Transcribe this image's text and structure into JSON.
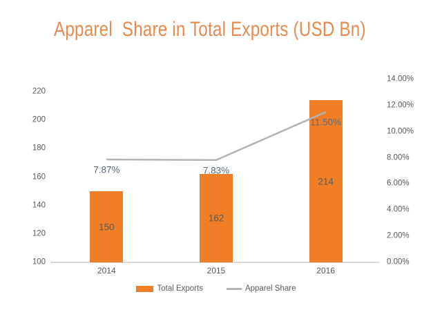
{
  "title": "Apparel  Share in Total Exports (USD Bn)",
  "colors": {
    "background": "#FFFFFF",
    "title": "#E78A50",
    "bar": "#F07E26",
    "line": "#B3B3B3",
    "axis_text": "#595959",
    "value_label": "#595959",
    "pct_label": "#5A6B7C",
    "baseline": "#D9D9D9"
  },
  "legend": {
    "items": [
      {
        "label": "Total Exports",
        "swatch": "bar"
      },
      {
        "label": "Apparel Share",
        "swatch": "line"
      }
    ]
  },
  "chart_data": {
    "type": "bar",
    "combo": "bar+line",
    "title": "Apparel  Share in Total Exports (USD Bn)",
    "categories": [
      "2014",
      "2015",
      "2016"
    ],
    "series": [
      {
        "name": "Total Exports",
        "type": "bar",
        "axis": "left",
        "values": [
          150,
          162,
          214
        ],
        "data_labels": [
          "150",
          "162",
          "214"
        ]
      },
      {
        "name": "Apparel Share",
        "type": "line",
        "axis": "right",
        "values": [
          7.87,
          7.83,
          11.5
        ],
        "data_labels": [
          "7.87%",
          "7.83%",
          "11.50%"
        ]
      }
    ],
    "left_axis": {
      "min": 100,
      "max": 220,
      "step": 20,
      "tick_labels": [
        "100",
        "120",
        "140",
        "160",
        "180",
        "200",
        "220"
      ]
    },
    "right_axis": {
      "min": 0,
      "max": 14,
      "step": 2,
      "tick_labels": [
        "0.00%",
        "2.00%",
        "4.00%",
        "6.00%",
        "8.00%",
        "10.00%",
        "12.00%",
        "14.00%"
      ]
    },
    "grid": false,
    "legend_position": "bottom"
  }
}
